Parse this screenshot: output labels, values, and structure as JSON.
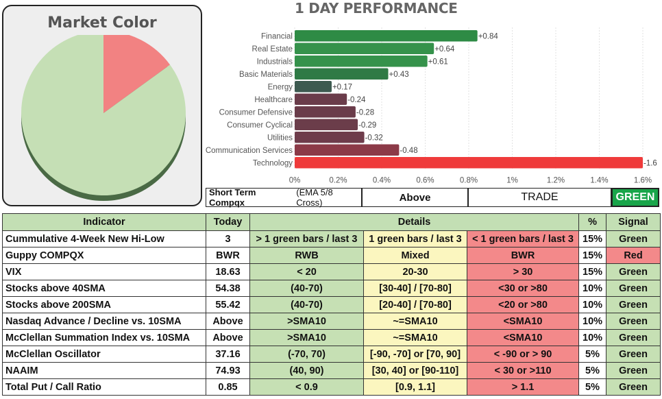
{
  "market": {
    "title": "Market Color",
    "slices": [
      {
        "name": "red",
        "value": 15,
        "color": "#f28282"
      },
      {
        "name": "green",
        "value": 85,
        "color": "#c5dfb5"
      }
    ]
  },
  "chart_data": {
    "type": "bar",
    "orientation": "horizontal",
    "title": "1 DAY PERFORMANCE",
    "categories": [
      "Financial",
      "Real Estate",
      "Industrials",
      "Basic Materials",
      "Energy",
      "Healthcare",
      "Consumer Defensive",
      "Consumer Cyclical",
      "Utilities",
      "Communication Services",
      "Technology"
    ],
    "values": [
      0.84,
      0.64,
      0.61,
      0.43,
      0.17,
      -0.24,
      -0.28,
      -0.29,
      -0.32,
      -0.48,
      -1.6
    ],
    "value_labels": [
      "+0.84",
      "+0.64",
      "+0.61",
      "+0.43",
      "+0.17",
      "-0.24",
      "-0.28",
      "-0.29",
      "-0.32",
      "-0.48",
      "-1.6"
    ],
    "colors": [
      "#2e8b45",
      "#35924b",
      "#35924b",
      "#2f7a45",
      "#3d5a50",
      "#6a3c4a",
      "#6a3c4a",
      "#6b3d4a",
      "#6e3c4b",
      "#8c3a48",
      "#ef3b3b"
    ],
    "xlim": [
      0,
      1.6
    ],
    "xticks": [
      "0%",
      "0.2%",
      "0.4%",
      "0.6%",
      "0.8%",
      "1%",
      "1.2%",
      "1.4%",
      "1.6%"
    ],
    "xlabel": "",
    "ylabel": "",
    "grid": true
  },
  "short_term": {
    "label_bold": "Short Term Compqx",
    "label_rest": "(EMA 5/8 Cross)",
    "state": "Above",
    "action": "TRADE",
    "signal": "GREEN"
  },
  "table": {
    "headers": [
      "Indicator",
      "Today",
      "Details",
      "%",
      "Signal"
    ],
    "rows": [
      {
        "indicator": "Cummulative 4-Week New Hi-Low",
        "today": "3",
        "d1": "> 1 green bars / last 3",
        "d2": "1 green bars / last 3",
        "d3": "< 1 green bars / last 3",
        "pct": "15%",
        "signal": "Green"
      },
      {
        "indicator": "Guppy COMPQX",
        "today": "BWR",
        "d1": "RWB",
        "d2": "Mixed",
        "d3": "BWR",
        "pct": "15%",
        "signal": "Red"
      },
      {
        "indicator": "VIX",
        "today": "18.63",
        "d1": "< 20",
        "d2": "20-30",
        "d3": "> 30",
        "pct": "15%",
        "signal": "Green"
      },
      {
        "indicator": "Stocks above 40SMA",
        "today": "54.38",
        "d1": "(40-70)",
        "d2": "[30-40] / [70-80]",
        "d3": "<30 or >80",
        "pct": "10%",
        "signal": "Green"
      },
      {
        "indicator": "Stocks above 200SMA",
        "today": "55.42",
        "d1": "(40-70)",
        "d2": "[20-40] / [70-80]",
        "d3": "<20 or >80",
        "pct": "10%",
        "signal": "Green"
      },
      {
        "indicator": "Nasdaq Advance / Decline vs. 10SMA",
        "today": "Above",
        "d1": ">SMA10",
        "d2": "~=SMA10",
        "d3": "<SMA10",
        "pct": "10%",
        "signal": "Green"
      },
      {
        "indicator": "McClellan Summation Index vs. 10SMA",
        "today": "Above",
        "d1": ">SMA10",
        "d2": "~=SMA10",
        "d3": "<SMA10",
        "pct": "10%",
        "signal": "Green"
      },
      {
        "indicator": "McClellan Oscillator",
        "today": "37.16",
        "d1": "(-70,  70)",
        "d2": "[-90, -70] or [70, 90]",
        "d3": "< -90 or > 90",
        "pct": "5%",
        "signal": "Green"
      },
      {
        "indicator": "NAAIM",
        "today": "74.93",
        "d1": "(40, 90)",
        "d2": "[30, 40] or [90-110]",
        "d3": "< 30 or >110",
        "pct": "5%",
        "signal": "Green"
      },
      {
        "indicator": "Total Put / Call Ratio",
        "today": "0.85",
        "d1": "< 0.9",
        "d2": "[0.9, 1.1]",
        "d3": "> 1.1",
        "pct": "5%",
        "signal": "Green"
      }
    ]
  }
}
